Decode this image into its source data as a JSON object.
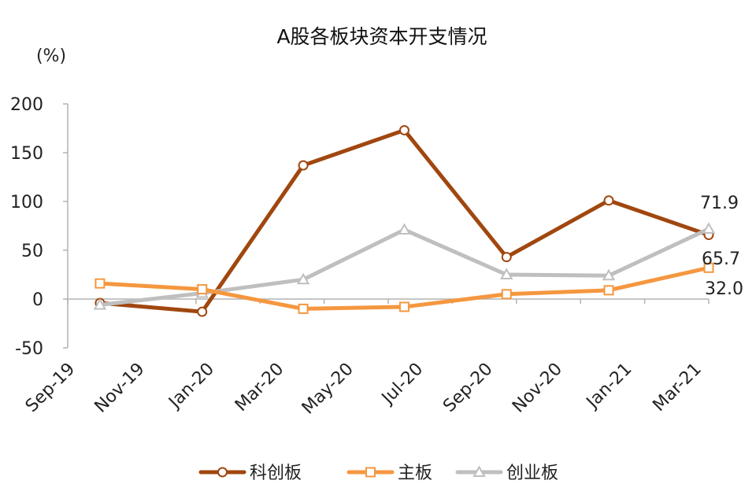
{
  "chart_data": {
    "type": "line",
    "title": "A股各板块资本开支情况",
    "unit_label": "(%)",
    "x_ticks": [
      "Sep-19",
      "Nov-19",
      "Jan-20",
      "Mar-20",
      "May-20",
      "Jul-20",
      "Sep-20",
      "Nov-20",
      "Jan-21",
      "Mar-21"
    ],
    "x": [
      "2019-09-30",
      "2019-12-31",
      "2020-03-31",
      "2020-06-30",
      "2020-09-30",
      "2020-12-31",
      "2021-03-31"
    ],
    "ylim": [
      -50,
      200
    ],
    "y_ticks": [
      200,
      150,
      100,
      50,
      0,
      -50
    ],
    "grid": false,
    "legend_position": "bottom",
    "series": [
      {
        "name": "科创板",
        "color": "#A0470F",
        "marker": "circle",
        "values": [
          -4,
          -13,
          137,
          173,
          43,
          101,
          65.7
        ]
      },
      {
        "name": "主板",
        "color": "#F5973F",
        "marker": "square",
        "values": [
          16,
          10,
          -10,
          -8,
          5,
          9,
          32.0
        ]
      },
      {
        "name": "创业板",
        "color": "#BFBFBF",
        "marker": "triangle",
        "values": [
          -6,
          6,
          20,
          71,
          25,
          24,
          71.9
        ]
      }
    ],
    "annotations": [
      "71.9",
      "65.7",
      "32.0"
    ]
  }
}
